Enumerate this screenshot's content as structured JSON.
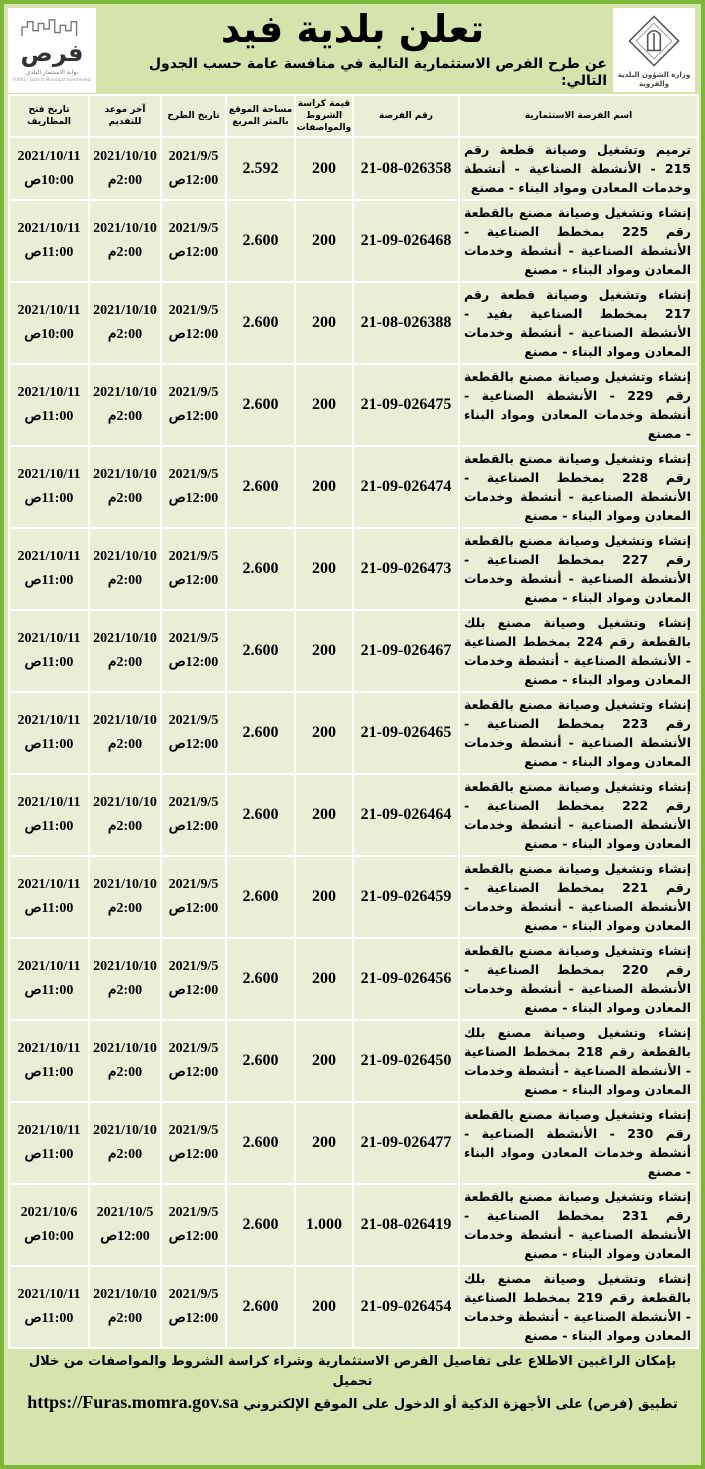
{
  "header": {
    "title": "تعلن بلدية فيد",
    "subtitle": "عن طرح الفرص الاستثمارية التالية في منافسة عامة حسب الجدول التالي:",
    "left_logo": {
      "name": "فرص",
      "caption": "بوابة الاستثمار البلدي",
      "caption_en": "FURAS | Gate to Municipal Investments"
    },
    "right_logo": {
      "text": "وزارة الشؤون البلدية والقروية"
    }
  },
  "table": {
    "columns": [
      "اسم الفرصة الاستثمارية",
      "رقم الفرصة",
      "قيمة كراسة الشروط والمواصفات",
      "مساحة الموقع بالمتر المربع",
      "تاريخ الطرح",
      "آخر موعد للتقديم",
      "تاريخ فتح المظاريف"
    ],
    "rows": [
      {
        "name": "ترميم وتشغيل وصيانة قطعة رقم 215 - الأنشطة الصناعية - أنشطة وخدمات المعادن ومواد البناء - مصنع",
        "number": "21-08-026358",
        "fee": "200",
        "area": "2.592",
        "post_date": "2021/9/5",
        "post_time": "12:00ص",
        "deadline_date": "2021/10/10",
        "deadline_time": "2:00م",
        "open_date": "2021/10/11",
        "open_time": "10:00ص"
      },
      {
        "name": "إنشاء وتشغيل وصيانة مصنع بالقطعة رقم 225 بمخطط الصناعية - الأنشطة الصناعية - أنشطة وخدمات المعادن ومواد البناء - مصنع",
        "number": "21-09-026468",
        "fee": "200",
        "area": "2.600",
        "post_date": "2021/9/5",
        "post_time": "12:00ص",
        "deadline_date": "2021/10/10",
        "deadline_time": "2:00م",
        "open_date": "2021/10/11",
        "open_time": "11:00ص"
      },
      {
        "name": "إنشاء وتشغيل وصيانة قطعة رقم 217 بمخطط الصناعية بفيد - الأنشطة الصناعية - أنشطة وخدمات المعادن ومواد البناء - مصنع",
        "number": "21-08-026388",
        "fee": "200",
        "area": "2.600",
        "post_date": "2021/9/5",
        "post_time": "12:00ص",
        "deadline_date": "2021/10/10",
        "deadline_time": "2:00م",
        "open_date": "2021/10/11",
        "open_time": "10:00ص"
      },
      {
        "name": "إنشاء وتشغيل وصيانة مصنع بالقطعة رقم 229 - الأنشطة الصناعية - أنشطة وخدمات المعادن ومواد البناء - مصنع",
        "number": "21-09-026475",
        "fee": "200",
        "area": "2.600",
        "post_date": "2021/9/5",
        "post_time": "12:00ص",
        "deadline_date": "2021/10/10",
        "deadline_time": "2:00م",
        "open_date": "2021/10/11",
        "open_time": "11:00ص"
      },
      {
        "name": "إنشاء وتشغيل وصيانة مصنع بالقطعة رقم 228 بمخطط الصناعية - الأنشطة الصناعية - أنشطة وخدمات المعادن ومواد البناء - مصنع",
        "number": "21-09-026474",
        "fee": "200",
        "area": "2.600",
        "post_date": "2021/9/5",
        "post_time": "12:00ص",
        "deadline_date": "2021/10/10",
        "deadline_time": "2:00م",
        "open_date": "2021/10/11",
        "open_time": "11:00ص"
      },
      {
        "name": "إنشاء وتشغيل وصيانة مصنع بالقطعة رقم 227 بمخطط الصناعية - الأنشطة الصناعية - أنشطة وخدمات المعادن ومواد البناء - مصنع",
        "number": "21-09-026473",
        "fee": "200",
        "area": "2.600",
        "post_date": "2021/9/5",
        "post_time": "12:00ص",
        "deadline_date": "2021/10/10",
        "deadline_time": "2:00م",
        "open_date": "2021/10/11",
        "open_time": "11:00ص"
      },
      {
        "name": "إنشاء وتشغيل وصيانة مصنع بلك بالقطعة رقم 224 بمخطط الصناعية - الأنشطة الصناعية - أنشطة وخدمات المعادن ومواد البناء - مصنع",
        "number": "21-09-026467",
        "fee": "200",
        "area": "2.600",
        "post_date": "2021/9/5",
        "post_time": "12:00ص",
        "deadline_date": "2021/10/10",
        "deadline_time": "2:00م",
        "open_date": "2021/10/11",
        "open_time": "11:00ص"
      },
      {
        "name": "إنشاء وتشغيل وصيانة مصنع بالقطعة رقم 223 بمخطط الصناعية - الأنشطة الصناعية - أنشطة وخدمات المعادن ومواد البناء - مصنع",
        "number": "21-09-026465",
        "fee": "200",
        "area": "2.600",
        "post_date": "2021/9/5",
        "post_time": "12:00ص",
        "deadline_date": "2021/10/10",
        "deadline_time": "2:00م",
        "open_date": "2021/10/11",
        "open_time": "11:00ص"
      },
      {
        "name": "إنشاء وتشغيل وصيانة مصنع بالقطعة رقم 222 بمخطط الصناعية - الأنشطة الصناعية - أنشطة وخدمات المعادن ومواد البناء - مصنع",
        "number": "21-09-026464",
        "fee": "200",
        "area": "2.600",
        "post_date": "2021/9/5",
        "post_time": "12:00ص",
        "deadline_date": "2021/10/10",
        "deadline_time": "2:00م",
        "open_date": "2021/10/11",
        "open_time": "11:00ص"
      },
      {
        "name": "إنشاء وتشغيل وصيانة مصنع بالقطعة رقم 221 بمخطط الصناعية - الأنشطة الصناعية - أنشطة وخدمات المعادن ومواد البناء - مصنع",
        "number": "21-09-026459",
        "fee": "200",
        "area": "2.600",
        "post_date": "2021/9/5",
        "post_time": "12:00ص",
        "deadline_date": "2021/10/10",
        "deadline_time": "2:00م",
        "open_date": "2021/10/11",
        "open_time": "11:00ص"
      },
      {
        "name": "إنشاء وتشغيل وصيانة مصنع بالقطعة رقم 220 بمخطط الصناعية - الأنشطة الصناعية - أنشطة وخدمات المعادن ومواد البناء - مصنع",
        "number": "21-09-026456",
        "fee": "200",
        "area": "2.600",
        "post_date": "2021/9/5",
        "post_time": "12:00ص",
        "deadline_date": "2021/10/10",
        "deadline_time": "2:00م",
        "open_date": "2021/10/11",
        "open_time": "11:00ص"
      },
      {
        "name": "إنشاء وتشغيل وصيانة مصنع بلك بالقطعة رقم 218 بمخطط الصناعية - الأنشطة الصناعية - أنشطة وخدمات المعادن ومواد البناء - مصنع",
        "number": "21-09-026450",
        "fee": "200",
        "area": "2.600",
        "post_date": "2021/9/5",
        "post_time": "12:00ص",
        "deadline_date": "2021/10/10",
        "deadline_time": "2:00م",
        "open_date": "2021/10/11",
        "open_time": "11:00ص"
      },
      {
        "name": "إنشاء وتشغيل وصيانة مصنع بالقطعة رقم 230 - الأنشطة الصناعية - أنشطة وخدمات المعادن ومواد البناء - مصنع",
        "number": "21-09-026477",
        "fee": "200",
        "area": "2.600",
        "post_date": "2021/9/5",
        "post_time": "12:00ص",
        "deadline_date": "2021/10/10",
        "deadline_time": "2:00م",
        "open_date": "2021/10/11",
        "open_time": "11:00ص"
      },
      {
        "name": "إنشاء وتشغيل وصيانة مصنع بالقطعة رقم 231 بمخطط الصناعية - الأنشطة الصناعية - أنشطة وخدمات المعادن ومواد البناء - مصنع",
        "number": "21-08-026419",
        "fee": "1.000",
        "area": "2.600",
        "post_date": "2021/9/5",
        "post_time": "12:00ص",
        "deadline_date": "2021/10/5",
        "deadline_time": "12:00ص",
        "open_date": "2021/10/6",
        "open_time": "10:00ص"
      },
      {
        "name": "إنشاء وتشغيل وصيانة مصنع بلك بالقطعة رقم 219 بمخطط الصناعية - الأنشطة الصناعية - أنشطة وخدمات المعادن ومواد البناء - مصنع",
        "number": "21-09-026454",
        "fee": "200",
        "area": "2.600",
        "post_date": "2021/9/5",
        "post_time": "12:00ص",
        "deadline_date": "2021/10/10",
        "deadline_time": "2:00م",
        "open_date": "2021/10/11",
        "open_time": "11:00ص"
      }
    ]
  },
  "footer": {
    "line1": "بإمكان الراغبين الاطلاع على تفاصيل الفرص الاستثمارية وشراء كراسة الشروط والمواصفات من خلال تحميل",
    "line2": "تطبيق (فرص) على الأجهزة الذكية أو الدخول على الموقع الإلكتروني",
    "url": "https://Furas.momra.gov.sa"
  },
  "colors": {
    "border": "#7db73a",
    "background": "#d5e4ad",
    "cell": "#e9eed7"
  }
}
